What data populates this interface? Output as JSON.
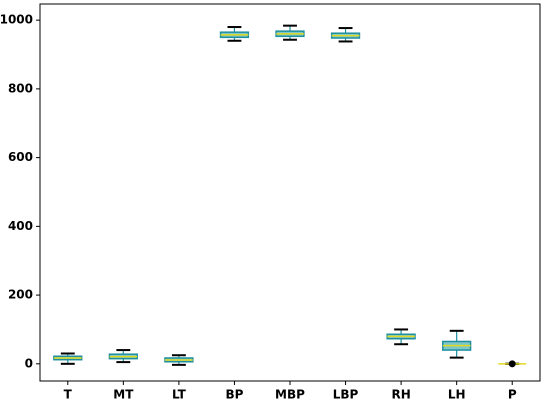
{
  "chart_data": {
    "type": "box",
    "categories": [
      "T",
      "MT",
      "LT",
      "BP",
      "MBP",
      "LBP",
      "RH",
      "LH",
      "P"
    ],
    "whislo": [
      0,
      5,
      -3,
      940,
      943,
      938,
      57,
      18,
      0
    ],
    "q1": [
      12,
      15,
      6,
      950,
      953,
      948,
      73,
      40,
      0
    ],
    "med": [
      17,
      21,
      11,
      957,
      960,
      955,
      80,
      53,
      0
    ],
    "q3": [
      22,
      28,
      17,
      965,
      968,
      962,
      86,
      65,
      0
    ],
    "whishi": [
      30,
      40,
      25,
      980,
      984,
      977,
      100,
      96,
      0
    ],
    "fliers": [
      [],
      [],
      [],
      [],
      [],
      [],
      [],
      [],
      [
        0
      ]
    ],
    "ylim": [
      -50,
      1047
    ],
    "yticks": [
      0,
      200,
      400,
      600,
      800,
      1000
    ],
    "box_color": "#1f8fa0",
    "box_fill": "#7fc8c8",
    "median_color": "#e0d820",
    "whisker_color": "#000000",
    "flier_color": "#000000"
  }
}
